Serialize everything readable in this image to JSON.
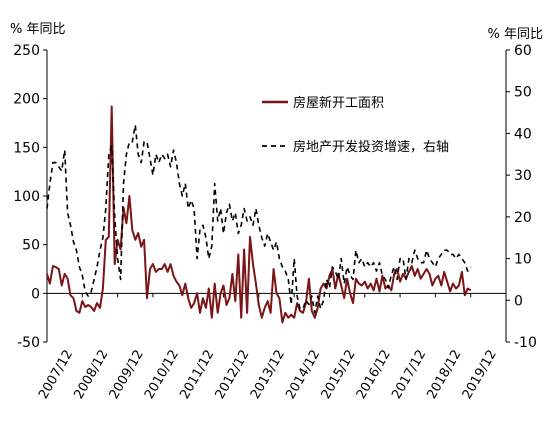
{
  "chart_data": {
    "type": "line",
    "y_left": {
      "unit_label": "% 年同比",
      "ticks": [
        250,
        200,
        150,
        100,
        50,
        0,
        -50
      ],
      "range": [
        -50,
        250
      ]
    },
    "y_right": {
      "unit_label": "% 年同比",
      "ticks": [
        60,
        50,
        40,
        30,
        20,
        10,
        0,
        -10
      ],
      "range": [
        -10,
        60
      ]
    },
    "x_ticks": [
      "2007/12",
      "2008/12",
      "2009/12",
      "2010/12",
      "2011/12",
      "2012/12",
      "2013/12",
      "2014/12",
      "2015/12",
      "2016/12",
      "2017/12",
      "2018/12",
      "2019/12"
    ],
    "legend": {
      "position": "top-right"
    },
    "series": [
      {
        "name": "房屋新开工面积",
        "axis": "left",
        "color": "#7b1416",
        "style": "solid",
        "points": [
          [
            "2007-12",
            20
          ],
          [
            "2008-01",
            10
          ],
          [
            "2008-02",
            28
          ],
          [
            "2008-03",
            27
          ],
          [
            "2008-04",
            25
          ],
          [
            "2008-05",
            8
          ],
          [
            "2008-06",
            20
          ],
          [
            "2008-07",
            15
          ],
          [
            "2008-08",
            -2
          ],
          [
            "2008-09",
            -5
          ],
          [
            "2008-10",
            -18
          ],
          [
            "2008-11",
            -20
          ],
          [
            "2008-12",
            -8
          ],
          [
            "2009-01",
            -14
          ],
          [
            "2009-02",
            -12
          ],
          [
            "2009-03",
            -14
          ],
          [
            "2009-04",
            -18
          ],
          [
            "2009-05",
            -10
          ],
          [
            "2009-06",
            -15
          ],
          [
            "2009-07",
            5
          ],
          [
            "2009-08",
            55
          ],
          [
            "2009-09",
            58
          ],
          [
            "2009-10",
            192
          ],
          [
            "2009-11",
            30
          ],
          [
            "2009-12",
            55
          ],
          [
            "2010-01",
            45
          ],
          [
            "2010-02",
            88
          ],
          [
            "2010-03",
            72
          ],
          [
            "2010-04",
            100
          ],
          [
            "2010-05",
            65
          ],
          [
            "2010-06",
            55
          ],
          [
            "2010-07",
            62
          ],
          [
            "2010-08",
            48
          ],
          [
            "2010-09",
            55
          ],
          [
            "2010-10",
            -5
          ],
          [
            "2010-11",
            25
          ],
          [
            "2010-12",
            30
          ],
          [
            "2011-01",
            22
          ],
          [
            "2011-02",
            25
          ],
          [
            "2011-03",
            25
          ],
          [
            "2011-04",
            30
          ],
          [
            "2011-05",
            22
          ],
          [
            "2011-06",
            30
          ],
          [
            "2011-07",
            18
          ],
          [
            "2011-08",
            12
          ],
          [
            "2011-09",
            8
          ],
          [
            "2011-10",
            -2
          ],
          [
            "2011-11",
            10
          ],
          [
            "2011-12",
            -5
          ],
          [
            "2012-01",
            -15
          ],
          [
            "2012-02",
            -10
          ],
          [
            "2012-03",
            0
          ],
          [
            "2012-04",
            -20
          ],
          [
            "2012-05",
            -5
          ],
          [
            "2012-06",
            -15
          ],
          [
            "2012-07",
            5
          ],
          [
            "2012-08",
            -25
          ],
          [
            "2012-09",
            10
          ],
          [
            "2012-10",
            -20
          ],
          [
            "2012-11",
            0
          ],
          [
            "2012-12",
            8
          ],
          [
            "2013-01",
            -12
          ],
          [
            "2013-02",
            -5
          ],
          [
            "2013-03",
            20
          ],
          [
            "2013-04",
            -8
          ],
          [
            "2013-05",
            40
          ],
          [
            "2013-06",
            -25
          ],
          [
            "2013-07",
            45
          ],
          [
            "2013-08",
            -20
          ],
          [
            "2013-09",
            58
          ],
          [
            "2013-10",
            30
          ],
          [
            "2013-11",
            10
          ],
          [
            "2013-12",
            -12
          ],
          [
            "2014-01",
            -25
          ],
          [
            "2014-02",
            -15
          ],
          [
            "2014-03",
            -8
          ],
          [
            "2014-04",
            -20
          ],
          [
            "2014-05",
            25
          ],
          [
            "2014-06",
            0
          ],
          [
            "2014-07",
            -5
          ],
          [
            "2014-08",
            -30
          ],
          [
            "2014-09",
            -20
          ],
          [
            "2014-10",
            -25
          ],
          [
            "2014-11",
            -22
          ],
          [
            "2014-12",
            -25
          ],
          [
            "2015-01",
            -10
          ],
          [
            "2015-02",
            -18
          ],
          [
            "2015-03",
            -20
          ],
          [
            "2015-04",
            -10
          ],
          [
            "2015-05",
            15
          ],
          [
            "2015-06",
            -18
          ],
          [
            "2015-07",
            -25
          ],
          [
            "2015-08",
            -15
          ],
          [
            "2015-09",
            5
          ],
          [
            "2015-10",
            10
          ],
          [
            "2015-11",
            5
          ],
          [
            "2015-12",
            18
          ],
          [
            "2016-01",
            25
          ],
          [
            "2016-02",
            5
          ],
          [
            "2016-03",
            20
          ],
          [
            "2016-04",
            8
          ],
          [
            "2016-05",
            -5
          ],
          [
            "2016-06",
            15
          ],
          [
            "2016-07",
            0
          ],
          [
            "2016-08",
            -10
          ],
          [
            "2016-09",
            15
          ],
          [
            "2016-10",
            10
          ],
          [
            "2016-11",
            8
          ],
          [
            "2016-12",
            12
          ],
          [
            "2017-01",
            5
          ],
          [
            "2017-02",
            10
          ],
          [
            "2017-03",
            3
          ],
          [
            "2017-04",
            15
          ],
          [
            "2017-05",
            2
          ],
          [
            "2017-06",
            18
          ],
          [
            "2017-07",
            5
          ],
          [
            "2017-08",
            8
          ],
          [
            "2017-09",
            3
          ],
          [
            "2017-10",
            20
          ],
          [
            "2017-11",
            25
          ],
          [
            "2017-12",
            12
          ],
          [
            "2018-01",
            20
          ],
          [
            "2018-02",
            15
          ],
          [
            "2018-03",
            22
          ],
          [
            "2018-04",
            28
          ],
          [
            "2018-05",
            18
          ],
          [
            "2018-06",
            25
          ],
          [
            "2018-07",
            15
          ],
          [
            "2018-08",
            20
          ],
          [
            "2018-09",
            25
          ],
          [
            "2018-10",
            20
          ],
          [
            "2018-11",
            8
          ],
          [
            "2018-12",
            15
          ],
          [
            "2019-01",
            18
          ],
          [
            "2019-02",
            8
          ],
          [
            "2019-03",
            22
          ],
          [
            "2019-04",
            12
          ],
          [
            "2019-05",
            2
          ],
          [
            "2019-06",
            10
          ],
          [
            "2019-07",
            5
          ],
          [
            "2019-08",
            8
          ],
          [
            "2019-09",
            22
          ],
          [
            "2019-10",
            -2
          ],
          [
            "2019-11",
            5
          ],
          [
            "2019-12",
            3
          ]
        ]
      },
      {
        "name": "房地产开发投资增速，右轴",
        "axis": "right",
        "color": "#000000",
        "style": "dashed",
        "points": [
          [
            "2007-12",
            22
          ],
          [
            "2008-01",
            28
          ],
          [
            "2008-02",
            33
          ],
          [
            "2008-03",
            33
          ],
          [
            "2008-04",
            32
          ],
          [
            "2008-05",
            31
          ],
          [
            "2008-06",
            36
          ],
          [
            "2008-07",
            21
          ],
          [
            "2008-08",
            18
          ],
          [
            "2008-09",
            14
          ],
          [
            "2008-10",
            12
          ],
          [
            "2008-11",
            8
          ],
          [
            "2008-12",
            6
          ],
          [
            "2009-01",
            2
          ],
          [
            "2009-02",
            1
          ],
          [
            "2009-03",
            2
          ],
          [
            "2009-04",
            5
          ],
          [
            "2009-05",
            8
          ],
          [
            "2009-06",
            12
          ],
          [
            "2009-07",
            15
          ],
          [
            "2009-08",
            22
          ],
          [
            "2009-09",
            35
          ],
          [
            "2009-10",
            37
          ],
          [
            "2009-11",
            20
          ],
          [
            "2009-12",
            10
          ],
          [
            "2010-01",
            5
          ],
          [
            "2010-02",
            28
          ],
          [
            "2010-03",
            35
          ],
          [
            "2010-04",
            38
          ],
          [
            "2010-05",
            38
          ],
          [
            "2010-06",
            42
          ],
          [
            "2010-07",
            35
          ],
          [
            "2010-08",
            33
          ],
          [
            "2010-09",
            38
          ],
          [
            "2010-10",
            38
          ],
          [
            "2010-11",
            34
          ],
          [
            "2010-12",
            30
          ],
          [
            "2011-01",
            35
          ],
          [
            "2011-02",
            33
          ],
          [
            "2011-03",
            35
          ],
          [
            "2011-04",
            34
          ],
          [
            "2011-05",
            35
          ],
          [
            "2011-06",
            32
          ],
          [
            "2011-07",
            36
          ],
          [
            "2011-08",
            33
          ],
          [
            "2011-09",
            28
          ],
          [
            "2011-10",
            25
          ],
          [
            "2011-11",
            28
          ],
          [
            "2011-12",
            22
          ],
          [
            "2012-01",
            24
          ],
          [
            "2012-02",
            22
          ],
          [
            "2012-03",
            10
          ],
          [
            "2012-04",
            17
          ],
          [
            "2012-05",
            18
          ],
          [
            "2012-06",
            15
          ],
          [
            "2012-07",
            10
          ],
          [
            "2012-08",
            13
          ],
          [
            "2012-09",
            28
          ],
          [
            "2012-10",
            19
          ],
          [
            "2012-11",
            22
          ],
          [
            "2012-12",
            16
          ],
          [
            "2013-01",
            21
          ],
          [
            "2013-02",
            23
          ],
          [
            "2013-03",
            19
          ],
          [
            "2013-04",
            21
          ],
          [
            "2013-05",
            16
          ],
          [
            "2013-06",
            18
          ],
          [
            "2013-07",
            22
          ],
          [
            "2013-08",
            19
          ],
          [
            "2013-09",
            20
          ],
          [
            "2013-10",
            18
          ],
          [
            "2013-11",
            22
          ],
          [
            "2013-12",
            18
          ],
          [
            "2014-01",
            15
          ],
          [
            "2014-02",
            13
          ],
          [
            "2014-03",
            16
          ],
          [
            "2014-04",
            14
          ],
          [
            "2014-05",
            12
          ],
          [
            "2014-06",
            14
          ],
          [
            "2014-07",
            10
          ],
          [
            "2014-08",
            8
          ],
          [
            "2014-09",
            7
          ],
          [
            "2014-10",
            5
          ],
          [
            "2014-11",
            -1
          ],
          [
            "2014-12",
            10
          ],
          [
            "2015-01",
            1
          ],
          [
            "2015-02",
            -2
          ],
          [
            "2015-03",
            -2
          ],
          [
            "2015-04",
            0
          ],
          [
            "2015-05",
            -1
          ],
          [
            "2015-06",
            1
          ],
          [
            "2015-07",
            -3
          ],
          [
            "2015-08",
            1
          ],
          [
            "2015-09",
            -2
          ],
          [
            "2015-10",
            0
          ],
          [
            "2015-11",
            5
          ],
          [
            "2015-12",
            3
          ],
          [
            "2016-01",
            8
          ],
          [
            "2016-02",
            7
          ],
          [
            "2016-03",
            5
          ],
          [
            "2016-04",
            10
          ],
          [
            "2016-05",
            4
          ],
          [
            "2016-06",
            8
          ],
          [
            "2016-07",
            6
          ],
          [
            "2016-08",
            5
          ],
          [
            "2016-09",
            12
          ],
          [
            "2016-10",
            9
          ],
          [
            "2016-11",
            10
          ],
          [
            "2016-12",
            8
          ],
          [
            "2017-01",
            9
          ],
          [
            "2017-02",
            8
          ],
          [
            "2017-03",
            9
          ],
          [
            "2017-04",
            7
          ],
          [
            "2017-05",
            9
          ],
          [
            "2017-06",
            6
          ],
          [
            "2017-07",
            5
          ],
          [
            "2017-08",
            3
          ],
          [
            "2017-09",
            6
          ],
          [
            "2017-10",
            8
          ],
          [
            "2017-11",
            5
          ],
          [
            "2017-12",
            10
          ],
          [
            "2018-01",
            10
          ],
          [
            "2018-02",
            5
          ],
          [
            "2018-03",
            10
          ],
          [
            "2018-04",
            9
          ],
          [
            "2018-05",
            12
          ],
          [
            "2018-06",
            10
          ],
          [
            "2018-07",
            9
          ],
          [
            "2018-08",
            9
          ],
          [
            "2018-09",
            12
          ],
          [
            "2018-10",
            10
          ],
          [
            "2018-11",
            9
          ],
          [
            "2018-12",
            8
          ],
          [
            "2019-01",
            10
          ],
          [
            "2019-02",
            11
          ],
          [
            "2019-03",
            12
          ],
          [
            "2019-04",
            12
          ],
          [
            "2019-05",
            11
          ],
          [
            "2019-06",
            11
          ],
          [
            "2019-07",
            10
          ],
          [
            "2019-08",
            11
          ],
          [
            "2019-09",
            10
          ],
          [
            "2019-10",
            9
          ],
          [
            "2019-11",
            7
          ],
          [
            "2019-12",
            8
          ]
        ]
      }
    ]
  }
}
